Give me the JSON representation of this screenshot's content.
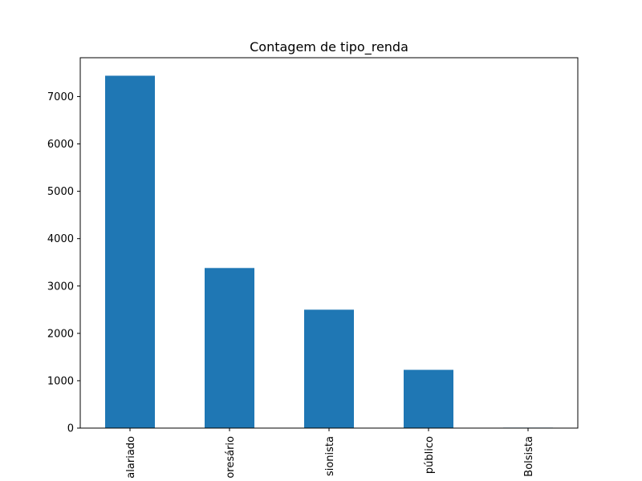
{
  "chart_data": {
    "type": "bar",
    "title": "Contagem de tipo_renda",
    "xlabel": "",
    "ylabel": "",
    "categories": [
      "Assalariado",
      "Empresário",
      "Pensionista",
      "Servidor público",
      "Bolsista"
    ],
    "category_labels_visible": [
      "alariado",
      "oresário",
      "sionista",
      "público",
      "Bolsista"
    ],
    "values": [
      7440,
      3380,
      2500,
      1230,
      10
    ],
    "ylim": [
      0,
      7820
    ],
    "yticks": [
      0,
      1000,
      2000,
      3000,
      4000,
      5000,
      6000,
      7000
    ],
    "grid": false,
    "legend": "none",
    "bar_color": "#1f77b4"
  }
}
